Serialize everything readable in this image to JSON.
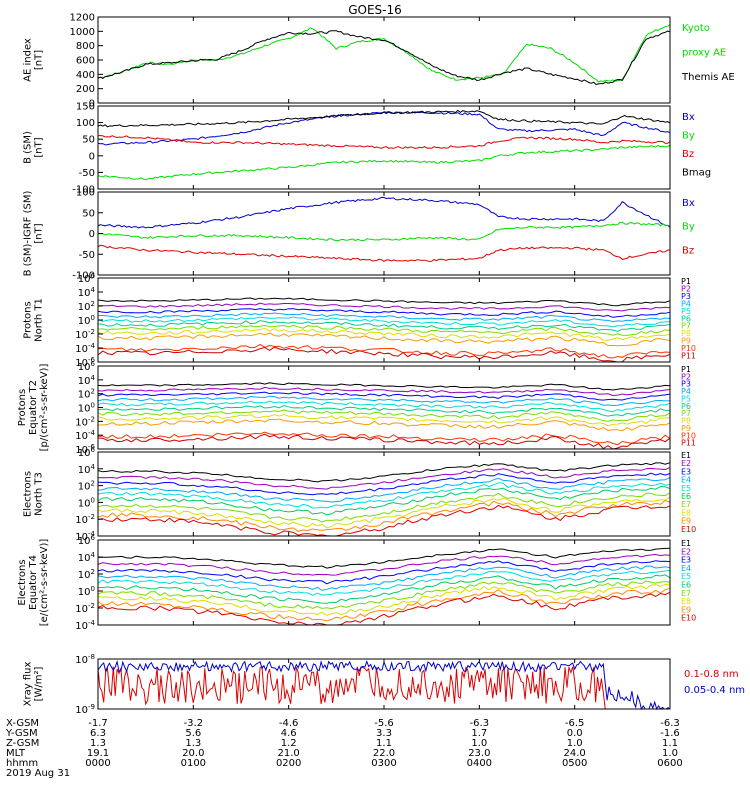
{
  "title": "GOES-16",
  "date_label": "2019 Aug 31",
  "colors": {
    "black": "#000000",
    "blue": "#0000cc",
    "green": "#00dd00",
    "red": "#dd0000",
    "p_series": [
      "#000000",
      "#9900bb",
      "#0000ff",
      "#00aaff",
      "#00dddd",
      "#00cc88",
      "#77dd00",
      "#dddd00",
      "#ff9900",
      "#ff3300",
      "#cc0000"
    ],
    "e_series": [
      "#000000",
      "#9900bb",
      "#0000ff",
      "#00aaff",
      "#00dddd",
      "#00cc66",
      "#77dd00",
      "#dddd00",
      "#ff8800",
      "#dd0000"
    ]
  },
  "ephemeris": {
    "row_labels": [
      "X-GSM",
      "Y-GSM",
      "Z-GSM",
      "MLT",
      "hhmm"
    ],
    "columns": [
      {
        "x": "-1.7",
        "y": "6.3",
        "z": "1.3",
        "mlt": "19.1",
        "hhmm": "0000"
      },
      {
        "x": "-3.2",
        "y": "5.6",
        "z": "1.3",
        "mlt": "20.0",
        "hhmm": "0100"
      },
      {
        "x": "-4.6",
        "y": "4.6",
        "z": "1.2",
        "mlt": "21.0",
        "hhmm": "0200"
      },
      {
        "x": "-5.6",
        "y": "3.3",
        "z": "1.1",
        "mlt": "22.0",
        "hhmm": "0300"
      },
      {
        "x": "-6.3",
        "y": "1.7",
        "z": "1.0",
        "mlt": "23.0",
        "hhmm": "0400"
      },
      {
        "x": "-6.5",
        "y": "0.0",
        "z": "1.0",
        "mlt": "24.0",
        "hhmm": "0500"
      },
      {
        "x": "-6.3",
        "y": "-1.6",
        "z": "1.1",
        "mlt": "1.0",
        "hhmm": "0600"
      }
    ]
  },
  "chart_data": [
    {
      "type": "line",
      "panel": "ae",
      "ylabel": [
        "AE index",
        "[nT]"
      ],
      "ylim": [
        0,
        1200
      ],
      "yticks": [
        "0",
        "200",
        "400",
        "600",
        "800",
        "1000",
        "1200"
      ],
      "x_unit": "hours UT",
      "series": [
        {
          "name": "Kyoto proxy AE",
          "color": "green",
          "x": [
            0,
            0.25,
            0.5,
            0.75,
            1,
            1.25,
            1.5,
            1.75,
            2,
            2.25,
            2.5,
            2.75,
            3,
            3.25,
            3.5,
            3.75,
            4,
            4.25,
            4.5,
            4.75,
            5,
            5.25,
            5.5,
            5.75,
            6
          ],
          "y": [
            350,
            430,
            560,
            540,
            600,
            600,
            680,
            800,
            900,
            1050,
            760,
            860,
            900,
            700,
            450,
            330,
            350,
            400,
            820,
            760,
            560,
            300,
            320,
            950,
            1100
          ]
        },
        {
          "name": "Themis AE",
          "color": "black",
          "x": [
            0,
            0.25,
            0.5,
            0.75,
            1,
            1.25,
            1.5,
            1.75,
            2,
            2.25,
            2.5,
            2.75,
            3,
            3.25,
            3.5,
            3.75,
            4,
            4.25,
            4.5,
            4.75,
            5,
            5.25,
            5.5,
            5.75,
            6
          ],
          "y": [
            340,
            430,
            540,
            560,
            590,
            610,
            730,
            880,
            980,
            970,
            1000,
            920,
            880,
            720,
            520,
            380,
            320,
            420,
            480,
            400,
            340,
            260,
            330,
            900,
            1000
          ]
        }
      ]
    },
    {
      "type": "line",
      "panel": "b_sm",
      "ylabel": [
        "B (SM)",
        "[nT]"
      ],
      "ylim": [
        -100,
        150
      ],
      "yticks": [
        "-100",
        "-50",
        "0",
        "50",
        "100",
        "150"
      ],
      "x_unit": "hours UT",
      "series": [
        {
          "name": "Bx",
          "color": "blue",
          "x": [
            0,
            0.5,
            1,
            1.5,
            2,
            2.5,
            3,
            3.5,
            4,
            4.2,
            4.5,
            5,
            5.3,
            5.5,
            6
          ],
          "y": [
            35,
            40,
            50,
            70,
            100,
            120,
            130,
            130,
            125,
            80,
            75,
            80,
            60,
            100,
            70
          ]
        },
        {
          "name": "By",
          "color": "green",
          "x": [
            0,
            0.5,
            1,
            1.5,
            2,
            2.5,
            3,
            3.5,
            4,
            4.2,
            4.5,
            5,
            5.3,
            5.5,
            6
          ],
          "y": [
            -60,
            -70,
            -55,
            -45,
            -35,
            -20,
            -15,
            -20,
            -15,
            0,
            10,
            15,
            20,
            25,
            30
          ]
        },
        {
          "name": "Bz",
          "color": "red",
          "x": [
            0,
            0.5,
            1,
            1.5,
            2,
            2.5,
            3,
            3.5,
            4,
            4.2,
            4.5,
            5,
            5.3,
            5.5,
            6
          ],
          "y": [
            60,
            55,
            40,
            40,
            35,
            30,
            25,
            25,
            30,
            45,
            55,
            50,
            40,
            45,
            40
          ]
        },
        {
          "name": "Bmag",
          "color": "black",
          "x": [
            0,
            0.5,
            1,
            1.5,
            2,
            2.5,
            3,
            3.5,
            4,
            4.2,
            4.5,
            5,
            5.3,
            5.5,
            6
          ],
          "y": [
            90,
            92,
            95,
            100,
            110,
            120,
            130,
            132,
            135,
            110,
            105,
            100,
            95,
            120,
            100
          ]
        }
      ]
    },
    {
      "type": "line",
      "panel": "b_minus_igrf",
      "ylabel": [
        "B (SM)-IGRF (SM)",
        "[nT]"
      ],
      "ylim": [
        -100,
        100
      ],
      "yticks": [
        "-100",
        "-50",
        "0",
        "50",
        "100"
      ],
      "x_unit": "hours UT",
      "series": [
        {
          "name": "Bx",
          "color": "blue",
          "x": [
            0,
            0.5,
            1,
            1.5,
            2,
            2.5,
            3,
            3.5,
            4,
            4.2,
            4.5,
            5,
            5.3,
            5.5,
            6
          ],
          "y": [
            20,
            15,
            25,
            40,
            60,
            75,
            85,
            80,
            70,
            40,
            35,
            35,
            30,
            75,
            15
          ]
        },
        {
          "name": "By",
          "color": "green",
          "x": [
            0,
            0.5,
            1,
            1.5,
            2,
            2.5,
            3,
            3.5,
            4,
            4.2,
            4.5,
            5,
            5.3,
            5.5,
            6
          ],
          "y": [
            0,
            -10,
            -5,
            -5,
            -10,
            -15,
            -15,
            -10,
            -15,
            10,
            15,
            15,
            20,
            25,
            20
          ]
        },
        {
          "name": "Bz",
          "color": "red",
          "x": [
            0,
            0.5,
            1,
            1.5,
            2,
            2.5,
            3,
            3.5,
            4,
            4.2,
            4.5,
            5,
            5.3,
            5.5,
            6
          ],
          "y": [
            -30,
            -40,
            -45,
            -50,
            -55,
            -60,
            -65,
            -65,
            -60,
            -40,
            -35,
            -35,
            -40,
            -60,
            -40
          ]
        }
      ]
    },
    {
      "type": "line",
      "panel": "protons_north",
      "ylabel": [
        "Protons",
        "North T1"
      ],
      "yscale": "log",
      "ylim": [
        1e-06,
        1000000.0
      ],
      "yticks": [
        "10^-6",
        "10^-4",
        "10^-2",
        "10^0",
        "10^2",
        "10^4",
        "10^6"
      ],
      "legend": [
        "P1",
        "P2",
        "P3",
        "P4",
        "P5",
        "P6",
        "P7",
        "P8",
        "P9",
        "P10",
        "P11"
      ],
      "x_unit": "hours UT",
      "series_profile_exp": [
        0.3,
        0.2,
        0.5,
        0.8,
        0.5,
        0.2,
        -0.2,
        -0.3,
        0.3,
        -0.8,
        0.1
      ],
      "series_base_exp": [
        2.6,
        1.8,
        1.0,
        0.3,
        -0.3,
        -0.9,
        -1.5,
        -2.1,
        -2.8,
        -4.5,
        -5.0
      ]
    },
    {
      "type": "line",
      "panel": "protons_equator",
      "ylabel": [
        "Protons",
        "Equator T2",
        "[p/(cm²-s-sr-keV)]"
      ],
      "yscale": "log",
      "ylim": [
        1e-06,
        1000000.0
      ],
      "yticks": [
        "10^-6",
        "10^-4",
        "10^-2",
        "10^0",
        "10^2",
        "10^4",
        "10^6"
      ],
      "legend": [
        "P1",
        "P2",
        "P3",
        "P4",
        "P5",
        "P6",
        "P7",
        "P8",
        "P9",
        "P10",
        "P11"
      ],
      "x_unit": "hours UT",
      "series_profile_exp": [
        0.3,
        0.3,
        0.5,
        0.8,
        0.5,
        0.3,
        0.0,
        -0.2,
        0.5,
        -0.8,
        0.3
      ],
      "series_base_exp": [
        3.0,
        2.3,
        1.6,
        0.9,
        0.2,
        -0.5,
        -1.2,
        -1.9,
        -2.6,
        -4.5,
        -5.0
      ]
    },
    {
      "type": "line",
      "panel": "electrons_north",
      "ylabel": [
        "Electrons",
        "North T3"
      ],
      "yscale": "log",
      "ylim": [
        0.0001,
        1000000.0
      ],
      "yticks": [
        "10^-4",
        "10^-2",
        "10^0",
        "10^2",
        "10^4",
        "10^6"
      ],
      "legend": [
        "E1",
        "E2",
        "E3",
        "E4",
        "E5",
        "E6",
        "E7",
        "E8",
        "E9",
        "E10"
      ],
      "x_unit": "hours UT",
      "series_profile_exp": [
        0.0,
        0.0,
        -0.5,
        -1.5,
        -2.0,
        -1.0,
        0.5,
        1.5,
        0.0,
        1.2,
        1.6
      ],
      "series_base_exp": [
        3.7,
        3.0,
        2.3,
        1.6,
        1.0,
        0.4,
        -0.4,
        -1.0,
        -1.5,
        -2.0
      ]
    },
    {
      "type": "line",
      "panel": "electrons_equator",
      "ylabel": [
        "Electrons",
        "Equator T4",
        "[e/(cm²-s-sr-keV)]"
      ],
      "yscale": "log",
      "ylim": [
        0.0001,
        1000000.0
      ],
      "yticks": [
        "10^-4",
        "10^-2",
        "10^0",
        "10^2",
        "10^4",
        "10^6"
      ],
      "legend": [
        "E1",
        "E2",
        "E3",
        "E4",
        "E5",
        "E6",
        "E7",
        "E8",
        "E9",
        "E10"
      ],
      "x_unit": "hours UT",
      "series_profile_exp": [
        0.0,
        0.0,
        -0.5,
        -1.5,
        -2.0,
        -1.0,
        0.5,
        1.5,
        0.0,
        1.2,
        1.6
      ],
      "series_base_exp": [
        4.0,
        3.2,
        2.4,
        1.7,
        1.1,
        0.4,
        -0.3,
        -0.9,
        -1.5,
        -2.0
      ]
    },
    {
      "type": "line",
      "panel": "xray",
      "ylabel": [
        "Xray flux",
        "[W/m²]"
      ],
      "yscale": "log",
      "ylim": [
        1e-09,
        1e-08
      ],
      "yticks": [
        "10^-9",
        "10^-8"
      ],
      "x_unit": "hours UT",
      "series": [
        {
          "name": "0.1-0.8 nm",
          "color": "red",
          "level_exp": -8.9,
          "noise_exp": 0.6
        },
        {
          "name": "0.05-0.4 nm",
          "color": "blue",
          "level_exp": -8.15,
          "noise_exp": 0.1
        }
      ]
    }
  ],
  "series_labels": {
    "ae": [
      {
        "text": "Kyoto",
        "color": "green"
      },
      {
        "text": "proxy AE",
        "color": "green"
      },
      {
        "text": "Themis AE",
        "color": "black"
      }
    ],
    "b_sm": [
      {
        "text": "Bx",
        "color": "blue"
      },
      {
        "text": "By",
        "color": "green"
      },
      {
        "text": "Bz",
        "color": "red"
      },
      {
        "text": "Bmag",
        "color": "black"
      }
    ],
    "b_minus_igrf": [
      {
        "text": "Bx",
        "color": "blue"
      },
      {
        "text": "By",
        "color": "green"
      },
      {
        "text": "Bz",
        "color": "red"
      }
    ],
    "xray": [
      {
        "text": "0.1-0.8 nm",
        "color": "red"
      },
      {
        "text": "0.05-0.4 nm",
        "color": "blue"
      }
    ]
  }
}
